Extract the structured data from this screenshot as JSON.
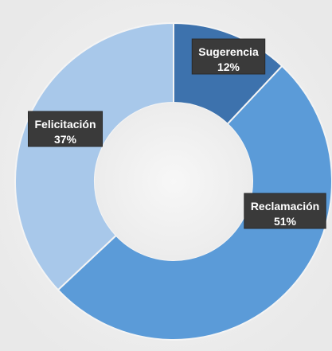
{
  "chart_data": {
    "type": "pie",
    "title": "",
    "donut": true,
    "slices": [
      {
        "label": "Sugerencia",
        "value": 12,
        "value_label": "12%",
        "color": "#3d72ad"
      },
      {
        "label": "Reclamación",
        "value": 51,
        "value_label": "51%",
        "color": "#5b9bd8"
      },
      {
        "label": "Felicitación",
        "value": 37,
        "value_label": "37%",
        "color": "#a8c8ea"
      }
    ],
    "legend": "none",
    "background": "#f0f0f0",
    "label_box_color": "#3a3a3a"
  }
}
